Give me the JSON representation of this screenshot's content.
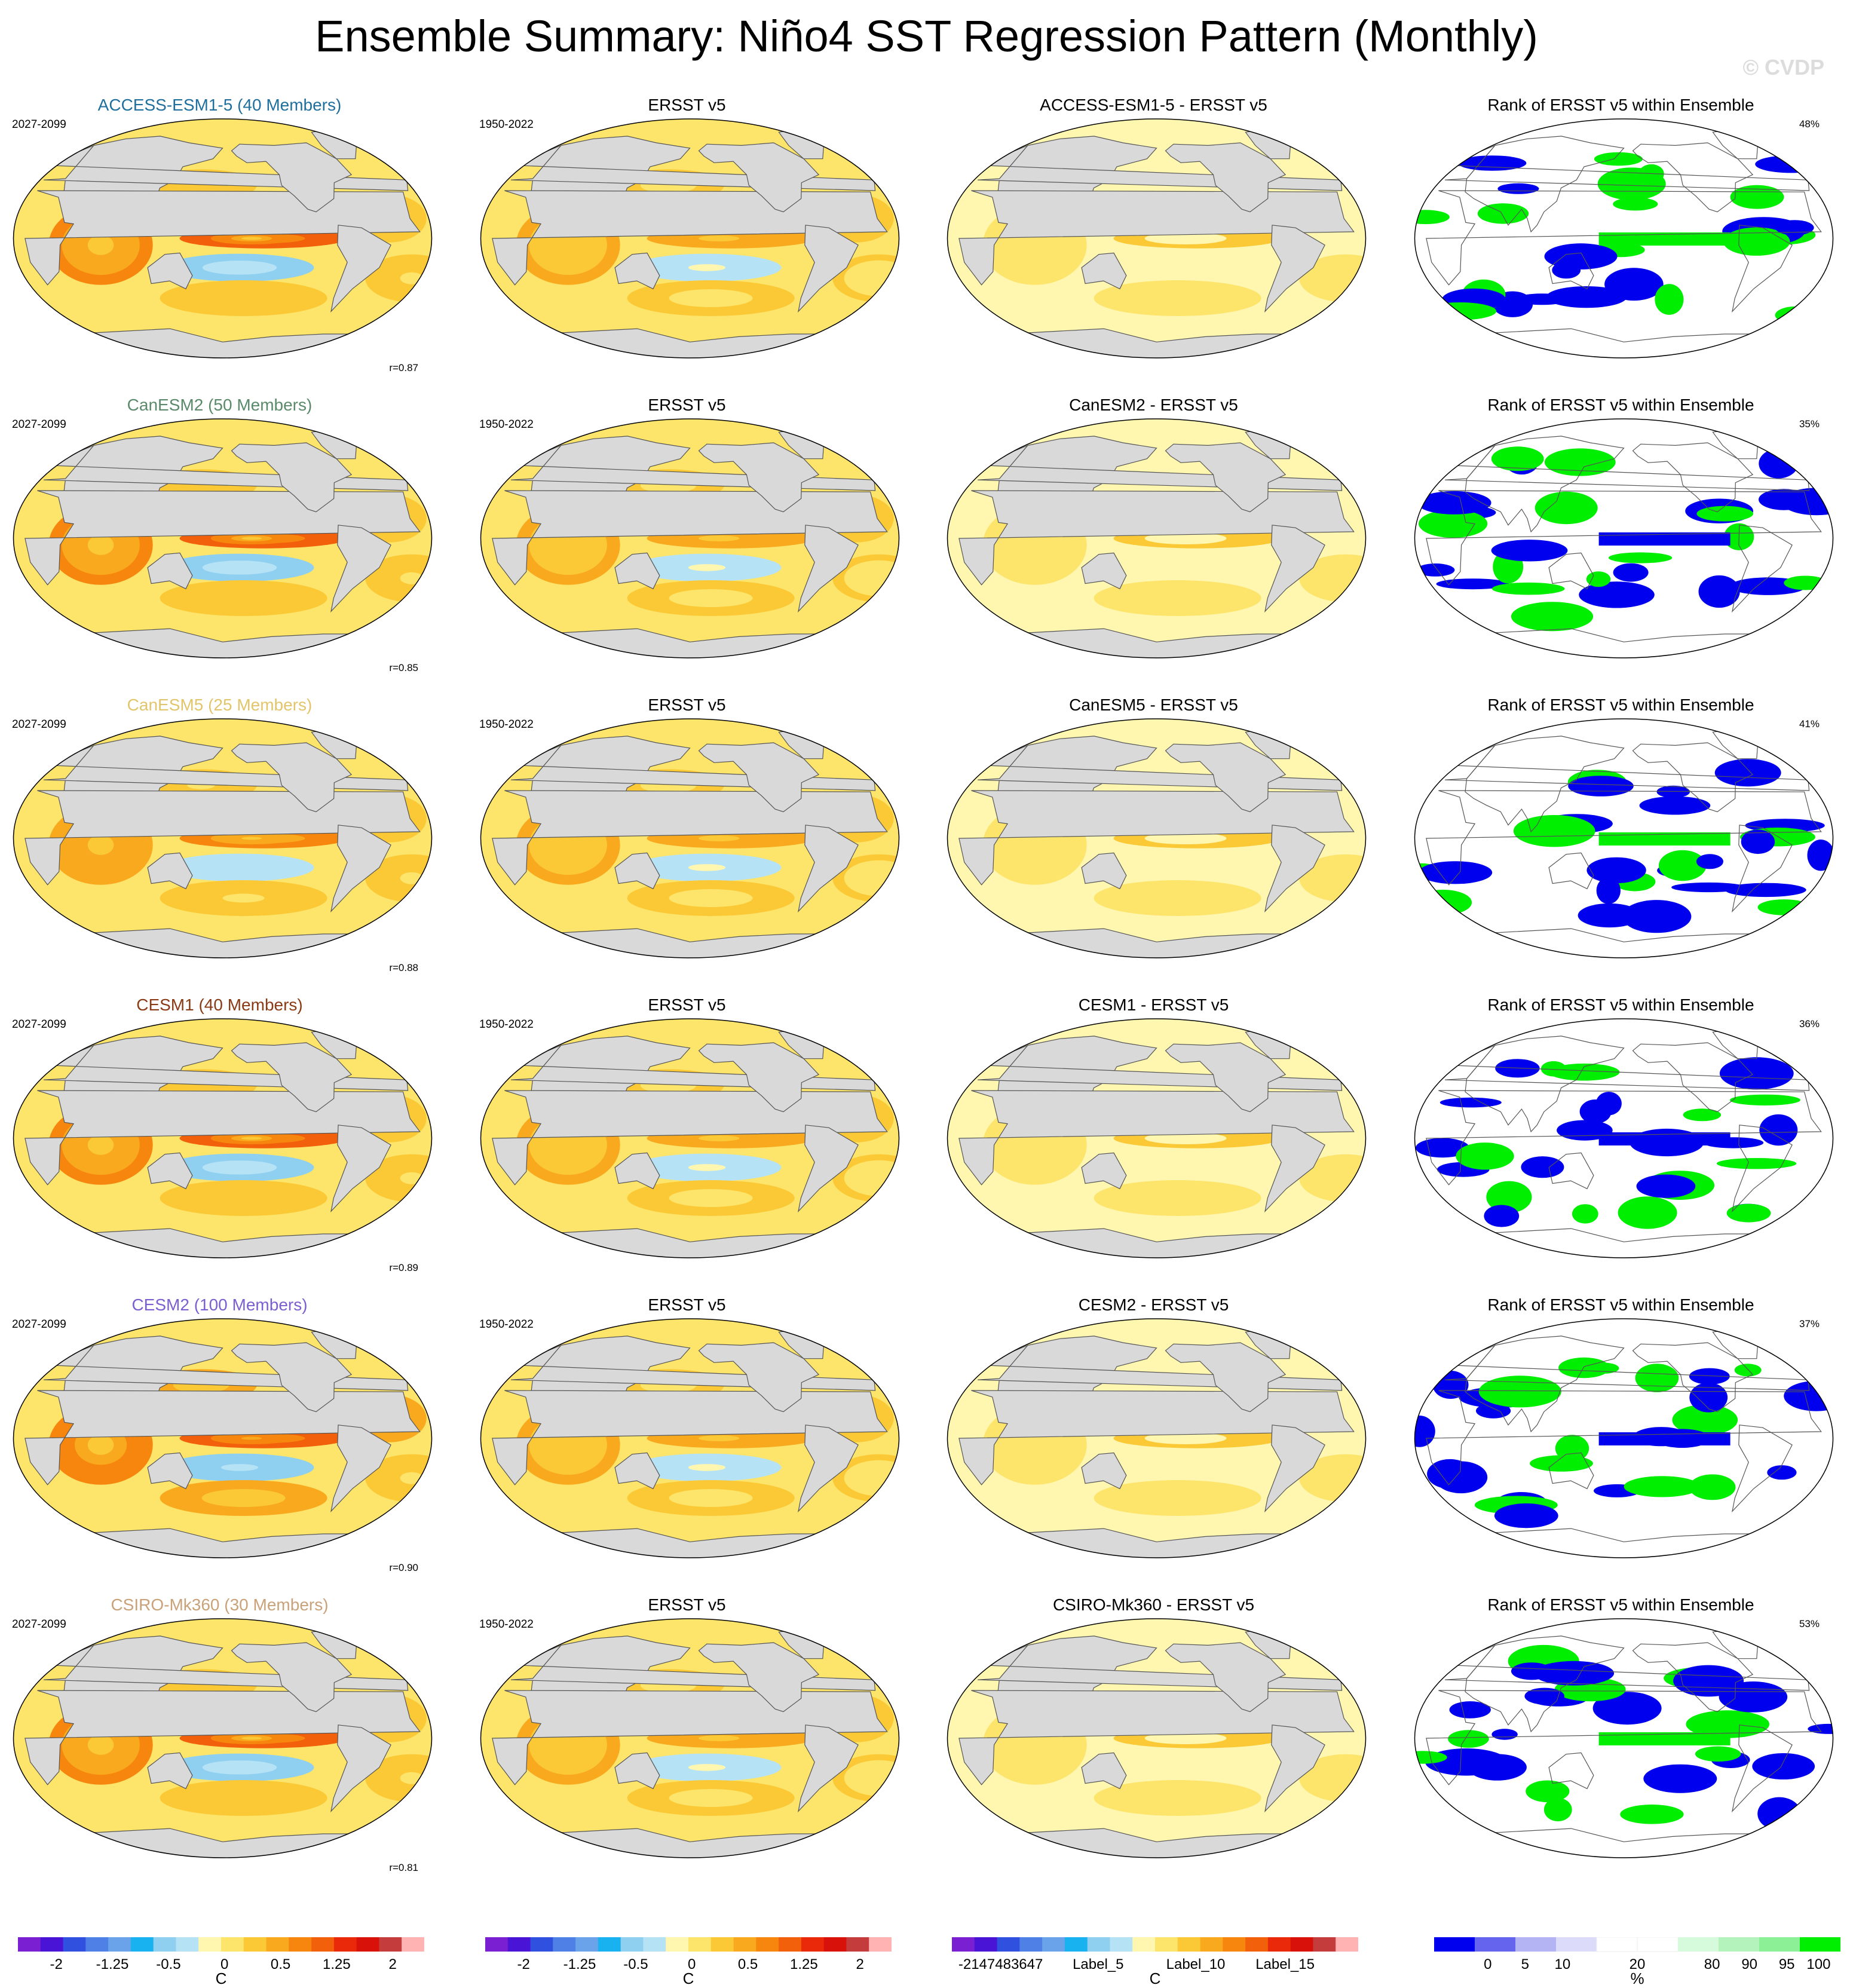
{
  "title": "Ensemble Summary: Niño4 SST Regression Pattern (Monthly)",
  "watermark": "© CVDP",
  "colors": {
    "sst_levels": [
      "#7a1fd1",
      "#4a14d6",
      "#3050e0",
      "#4f80e6",
      "#6aa3ea",
      "#19b2f0",
      "#8fd0f0",
      "#b6e2f6",
      "#fff7b0",
      "#fde46a",
      "#fbc935",
      "#f9a91d",
      "#f7860f",
      "#f3600b",
      "#e9290a",
      "#d8120a",
      "#c43c3c",
      "#ffb3b3"
    ],
    "rank_levels": [
      "#0000ee",
      "#6464ee",
      "#b4b4f4",
      "#dcdcfa",
      "#ffffff",
      "#ffffff",
      "#d6fadc",
      "#b4f4bc",
      "#8cf096",
      "#00ee00"
    ],
    "land": "#d9d9d9",
    "coast": "#555555"
  },
  "rows": [
    {
      "model_title": "ACCESS-ESM1-5 (40 Members)",
      "title_color": "#1f6f9e",
      "model_years": "2027-2099",
      "obs_title": "ERSST v5",
      "obs_years": "1950-2022",
      "diff_title": "ACCESS-ESM1-5 - ERSST v5",
      "rank_title": "Rank of ERSST v5 within Ensemble",
      "rank_pct": "48%",
      "r": "r=0.87"
    },
    {
      "model_title": "CanESM2 (50 Members)",
      "title_color": "#5a8a6a",
      "model_years": "2027-2099",
      "obs_title": "ERSST v5",
      "obs_years": "1950-2022",
      "diff_title": "CanESM2 - ERSST v5",
      "rank_title": "Rank of ERSST v5 within Ensemble",
      "rank_pct": "35%",
      "r": "r=0.85"
    },
    {
      "model_title": "CanESM5 (25 Members)",
      "title_color": "#e2c56b",
      "model_years": "2027-2099",
      "obs_title": "ERSST v5",
      "obs_years": "1950-2022",
      "diff_title": "CanESM5 - ERSST v5",
      "rank_title": "Rank of ERSST v5 within Ensemble",
      "rank_pct": "41%",
      "r": "r=0.88"
    },
    {
      "model_title": "CESM1 (40 Members)",
      "title_color": "#8a3a14",
      "model_years": "2027-2099",
      "obs_title": "ERSST v5",
      "obs_years": "1950-2022",
      "diff_title": "CESM1 - ERSST v5",
      "rank_title": "Rank of ERSST v5 within Ensemble",
      "rank_pct": "36%",
      "r": "r=0.89"
    },
    {
      "model_title": "CESM2 (100 Members)",
      "title_color": "#7b5fd1",
      "model_years": "2027-2099",
      "obs_title": "ERSST v5",
      "obs_years": "1950-2022",
      "diff_title": "CESM2 - ERSST v5",
      "rank_title": "Rank of ERSST v5 within Ensemble",
      "rank_pct": "37%",
      "r": "r=0.90"
    },
    {
      "model_title": "CSIRO-Mk360 (30 Members)",
      "title_color": "#c9a27a",
      "model_years": "2027-2099",
      "obs_title": "ERSST v5",
      "obs_years": "1950-2022",
      "diff_title": "CSIRO-Mk360 - ERSST v5",
      "rank_title": "Rank of ERSST v5 within Ensemble",
      "rank_pct": "53%",
      "r": "r=0.81"
    }
  ],
  "colorbars": [
    {
      "ticks": [
        "-2",
        "-1.25",
        "-0.5",
        "0",
        "0.5",
        "1.25",
        "2"
      ],
      "unit": "C"
    },
    {
      "ticks": [
        "-2",
        "-1.25",
        "-0.5",
        "0",
        "0.5",
        "1.25",
        "2"
      ],
      "unit": "C"
    },
    {
      "ticks": [
        "-2147483647",
        "Label_5",
        "Label_10",
        "Label_15"
      ],
      "unit": "C"
    },
    {
      "ticks": [
        "0",
        "5",
        "10",
        "20",
        "80",
        "90",
        "95",
        "100"
      ],
      "unit": "%"
    }
  ],
  "chart_data": [
    {
      "type": "heatmap",
      "title": "Ensemble Summary: Niño4 SST Regression Pattern (Monthly)",
      "projection": "Robinson global, Pacific-centered",
      "unit": "C",
      "colorbar_levels": [
        -2,
        -1.75,
        -1.5,
        -1.25,
        -1,
        -0.75,
        -0.5,
        -0.25,
        0,
        0.25,
        0.5,
        0.75,
        1,
        1.25,
        1.5,
        1.75,
        2
      ],
      "panels": [
        "model ensemble-mean regression",
        "ERSST v5 regression",
        "model minus ERSST v5"
      ],
      "features": {
        "equatorial_pacific_warm_tongue_peak_C": {
          "ACCESS-ESM1-5": 1.5,
          "CanESM2": 1.5,
          "CanESM5": 1.25,
          "CESM1": 1.5,
          "CESM2": 1.75,
          "CSIRO-Mk360": 1.5,
          "ERSST v5": 1.0
        },
        "pattern_correlation": {
          "ACCESS-ESM1-5": 0.87,
          "CanESM2": 0.85,
          "CanESM5": 0.88,
          "CESM1": 0.89,
          "CESM2": 0.9,
          "CSIRO-Mk360": 0.81
        }
      }
    },
    {
      "type": "heatmap",
      "title": "Rank of ERSST v5 within Ensemble",
      "unit": "%",
      "colorbar_levels": [
        0,
        5,
        10,
        20,
        80,
        90,
        95,
        100
      ],
      "colors": "blue = low rank, white = middle, green = high rank",
      "percent_area_shown": {
        "ACCESS-ESM1-5": 48,
        "CanESM2": 35,
        "CanESM5": 41,
        "CESM1": 36,
        "CESM2": 37,
        "CSIRO-Mk360": 53
      }
    }
  ]
}
